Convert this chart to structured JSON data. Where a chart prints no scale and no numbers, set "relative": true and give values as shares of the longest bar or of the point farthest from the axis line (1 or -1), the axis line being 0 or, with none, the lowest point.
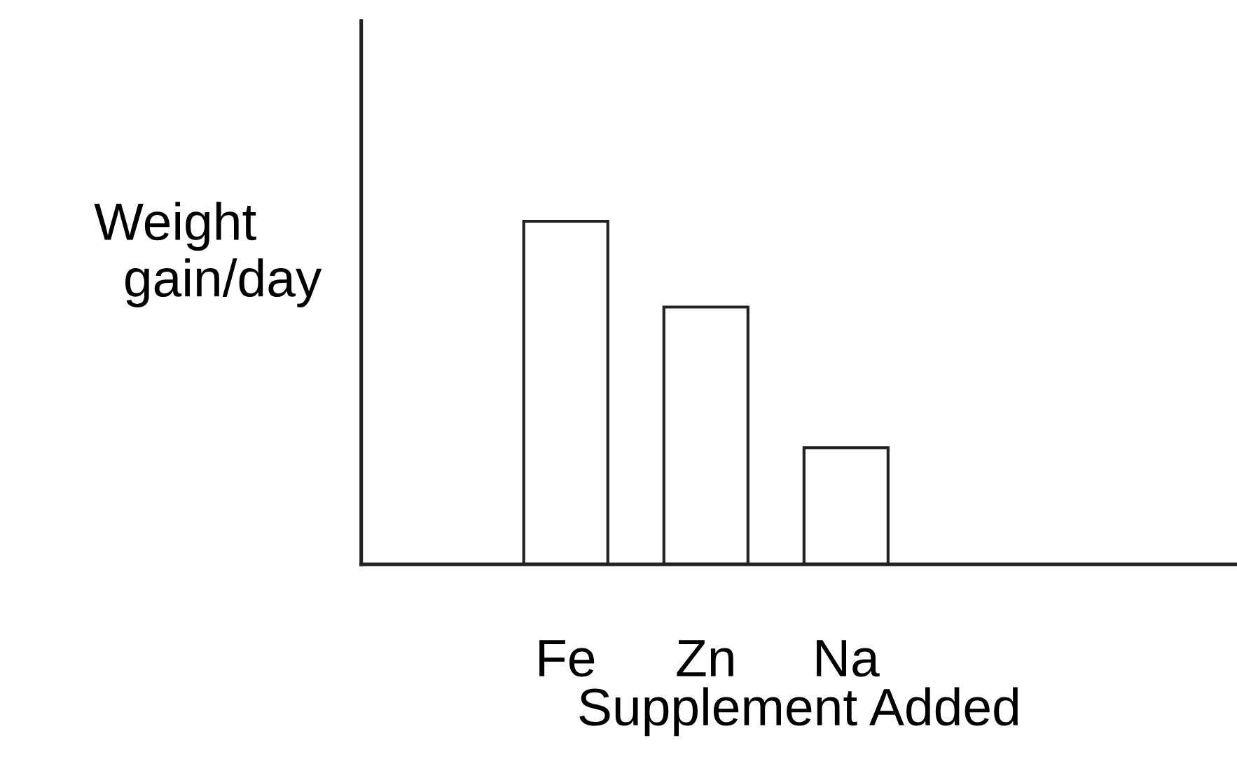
{
  "chart_data": {
    "type": "bar",
    "relative": true,
    "xlabel": "Supplement Added",
    "ylabel": "Weight\n  gain/day",
    "categories": [
      "Fe",
      "Zn",
      "Na"
    ],
    "values": [
      1,
      0.75,
      0.34
    ],
    "color": "#ffffff",
    "grid": false,
    "legend": false
  }
}
